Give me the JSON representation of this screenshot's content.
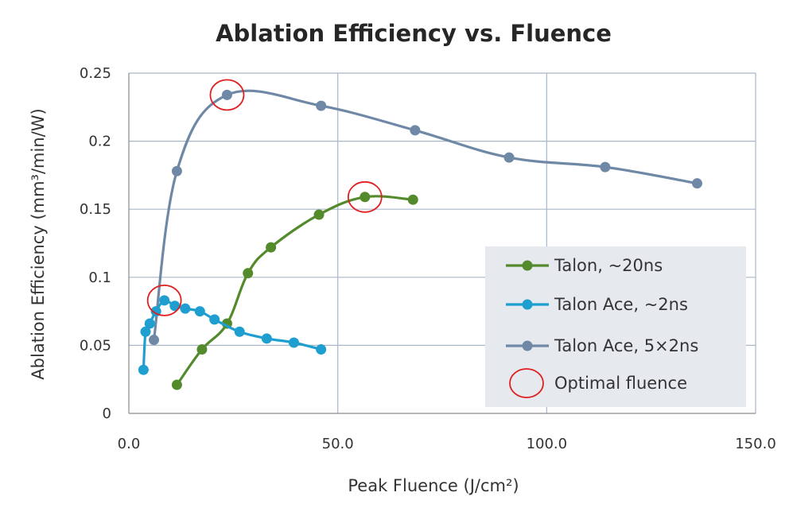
{
  "chart_data": {
    "type": "line",
    "title": "Ablation Efficiency vs. Fluence",
    "xlabel": "Peak Fluence (J/cm²)",
    "ylabel": "Ablation Efficiency (mm³/min/W)",
    "xlim": [
      0,
      150
    ],
    "ylim": [
      0,
      0.25
    ],
    "x_ticks": [
      0,
      50,
      100,
      150
    ],
    "x_tick_labels": [
      "0.0",
      "50.0",
      "100.0",
      "150.0"
    ],
    "y_ticks": [
      0,
      0.05,
      0.1,
      0.15,
      0.2,
      0.25
    ],
    "y_tick_labels": [
      "0",
      "0.05",
      "0.1",
      "0.15",
      "0.2",
      "0.25"
    ],
    "grid": true,
    "legend_position": "bottom-right",
    "series": [
      {
        "name": "Talon, ~20ns",
        "color": "#538a2b",
        "x": [
          11.5,
          17.5,
          23.5,
          28.5,
          34,
          45.5,
          56.5,
          68
        ],
        "y": [
          0.021,
          0.047,
          0.066,
          0.103,
          0.122,
          0.146,
          0.159,
          0.157
        ]
      },
      {
        "name": "Talon Ace, ~2ns",
        "color": "#1f9fd0",
        "x": [
          3.5,
          4,
          5,
          6.5,
          8.5,
          11,
          13.5,
          17,
          20.5,
          26.5,
          33,
          39.5,
          46
        ],
        "y": [
          0.032,
          0.06,
          0.066,
          0.075,
          0.083,
          0.079,
          0.077,
          0.075,
          0.069,
          0.06,
          0.055,
          0.052,
          0.047
        ]
      },
      {
        "name": "Talon Ace, 5×2ns",
        "color": "#6f88a6",
        "x": [
          6,
          11.5,
          23.5,
          46,
          68.5,
          91,
          114,
          136
        ],
        "y": [
          0.054,
          0.178,
          0.234,
          0.226,
          0.208,
          0.188,
          0.181,
          0.169
        ]
      }
    ],
    "optimal_points": [
      {
        "x": 23.5,
        "y": 0.234
      },
      {
        "x": 56.5,
        "y": 0.159
      },
      {
        "x": 8.5,
        "y": 0.083
      }
    ],
    "optimal_label": "Optimal fluence",
    "optimal_color": "#e02020",
    "background_color": "#ffffff",
    "grid_color": "#a8b8c8",
    "legend_background": "#e6eaee"
  }
}
